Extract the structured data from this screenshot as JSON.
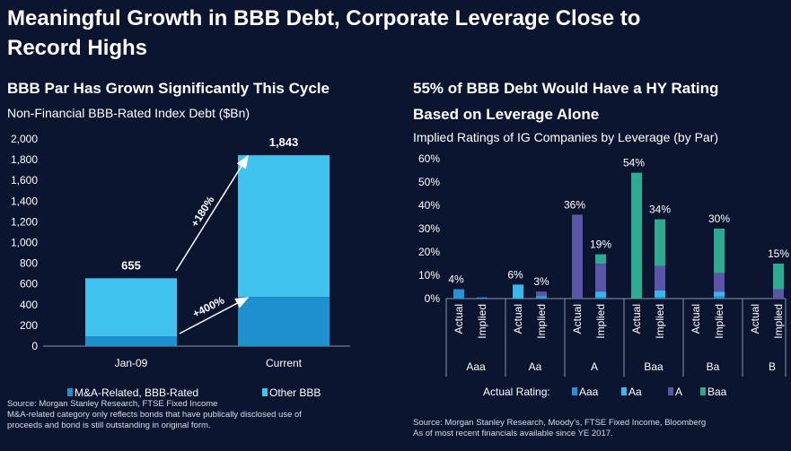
{
  "page": {
    "title_line1": "Meaningful Growth in BBB Debt, Corporate Leverage Close to",
    "title_line2": "Record Highs"
  },
  "left_panel": {
    "heading": "BBB Par Has Grown Significantly This Cycle",
    "subtitle": "Non-Financial BBB-Rated Index Debt ($Bn)",
    "source_line1": "Source: Morgan Stanley Research, FTSE Fixed Income",
    "source_line2": "M&A-related category only reflects bonds that have publically disclosed use of",
    "source_line3": "proceeds and bond is still outstanding in original form.",
    "arrow_top_label": "+180%",
    "arrow_bottom_label": "+400%"
  },
  "right_panel": {
    "heading_line1": "55% of BBB Debt Would Have a HY Rating",
    "heading_line2": "Based on Leverage Alone",
    "subtitle": "Implied Ratings of IG Companies by Leverage (by Par)",
    "source_line1": "Source: Morgan Stanley Research, Moody’s, FTSE Fixed Income, Bloomberg",
    "source_line2": "As of most recent financials available since YE 2017."
  },
  "colors": {
    "background": "#0b1530",
    "ma_related": "#1e8fcf",
    "other_bbb": "#41c3f0",
    "aaa": "#2693d6",
    "aa": "#39b6ee",
    "a": "#5a55a6",
    "baa": "#2dab92"
  },
  "chart_data": [
    {
      "type": "bar",
      "stacked": true,
      "title": "Non-Financial BBB-Rated Index Debt ($Bn)",
      "categories": [
        "Jan-09",
        "Current"
      ],
      "series": [
        {
          "name": "M&A-Related, BBB-Rated",
          "values": [
            95,
            475
          ]
        },
        {
          "name": "Other BBB",
          "values": [
            560,
            1368
          ]
        }
      ],
      "totals": [
        655,
        1843
      ],
      "total_labels": [
        "655",
        "1,843"
      ],
      "ylim": [
        0,
        2000
      ],
      "yticks": [
        "0",
        "200",
        "400",
        "600",
        "800",
        "1,000",
        "1,200",
        "1,400",
        "1,600",
        "1,800",
        "2,000"
      ],
      "legend": [
        "M&A-Related, BBB-Rated",
        "Other BBB"
      ],
      "legend_position": "bottom"
    },
    {
      "type": "bar",
      "stacked": true,
      "title": "Implied Ratings of IG Companies by Leverage (by Par)",
      "groups": [
        "Aaa",
        "Aa",
        "A",
        "Baa",
        "Ba",
        "B"
      ],
      "bar_labels": [
        "Actual",
        "Implied"
      ],
      "series_names": [
        "Aaa",
        "Aa",
        "A",
        "Baa"
      ],
      "bars": [
        {
          "group": "Aaa",
          "label": "Actual",
          "total_label": "4%",
          "segments": {
            "Aaa": 4,
            "Aa": 0,
            "A": 0,
            "Baa": 0
          }
        },
        {
          "group": "Aaa",
          "label": "Implied",
          "total_label": "",
          "segments": {
            "Aaa": 0.5,
            "Aa": 0,
            "A": 0,
            "Baa": 0
          }
        },
        {
          "group": "Aa",
          "label": "Actual",
          "total_label": "6%",
          "segments": {
            "Aaa": 0,
            "Aa": 6,
            "A": 0,
            "Baa": 0
          }
        },
        {
          "group": "Aa",
          "label": "Implied",
          "total_label": "3%",
          "segments": {
            "Aaa": 0.5,
            "Aa": 0.5,
            "A": 2,
            "Baa": 0
          }
        },
        {
          "group": "A",
          "label": "Actual",
          "total_label": "36%",
          "segments": {
            "Aaa": 0,
            "Aa": 0,
            "A": 36,
            "Baa": 0
          }
        },
        {
          "group": "A",
          "label": "Implied",
          "total_label": "19%",
          "segments": {
            "Aaa": 0.5,
            "Aa": 2.5,
            "A": 12,
            "Baa": 4
          }
        },
        {
          "group": "Baa",
          "label": "Actual",
          "total_label": "54%",
          "segments": {
            "Aaa": 0,
            "Aa": 0,
            "A": 0,
            "Baa": 54
          }
        },
        {
          "group": "Baa",
          "label": "Implied",
          "total_label": "34%",
          "segments": {
            "Aaa": 0.5,
            "Aa": 3,
            "A": 10.5,
            "Baa": 20
          }
        },
        {
          "group": "Ba",
          "label": "Actual",
          "total_label": "",
          "segments": {
            "Aaa": 0,
            "Aa": 0,
            "A": 0,
            "Baa": 0
          }
        },
        {
          "group": "Ba",
          "label": "Implied",
          "total_label": "30%",
          "segments": {
            "Aaa": 1,
            "Aa": 2,
            "A": 8,
            "Baa": 19
          }
        },
        {
          "group": "B",
          "label": "Actual",
          "total_label": "",
          "segments": {
            "Aaa": 0,
            "Aa": 0,
            "A": 0,
            "Baa": 0
          }
        },
        {
          "group": "B",
          "label": "Implied",
          "total_label": "15%",
          "segments": {
            "Aaa": 0,
            "Aa": 0,
            "A": 4,
            "Baa": 11
          }
        }
      ],
      "ylim": [
        0,
        60
      ],
      "yticks": [
        "0%",
        "10%",
        "20%",
        "30%",
        "40%",
        "50%",
        "60%"
      ],
      "legend_title": "Actual Rating:",
      "legend": [
        "Aaa",
        "Aa",
        "A",
        "Baa"
      ],
      "legend_position": "bottom"
    }
  ]
}
